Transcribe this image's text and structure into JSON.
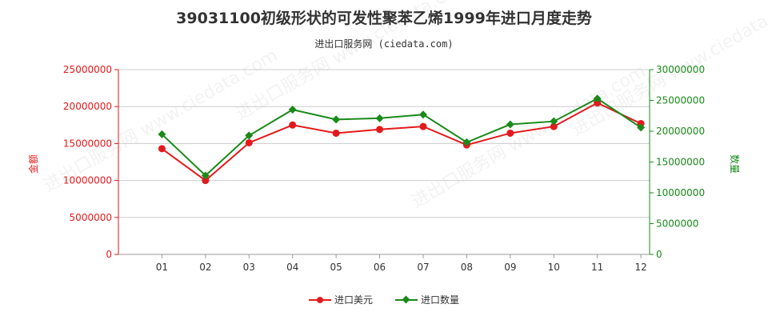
{
  "title": "39031100初级形状的可发性聚苯乙烯1999年进口月度走势",
  "subtitle": "进出口服务网 (ciedata.com)",
  "watermark": "进出口服务网 www.ciedata.com",
  "colors": {
    "value": "#e31a1c",
    "quantity": "#1a8a1a",
    "axis_left": "#e31a1c",
    "axis_right": "#1a8a1a",
    "grid": "#cccccc"
  },
  "chart_data": {
    "type": "line",
    "categories": [
      "01",
      "02",
      "03",
      "04",
      "05",
      "06",
      "07",
      "08",
      "09",
      "10",
      "11",
      "12"
    ],
    "y_left": {
      "label": "金额",
      "ylim": [
        0,
        25000000
      ],
      "ticks": [
        0,
        5000000,
        10000000,
        15000000,
        20000000,
        25000000
      ]
    },
    "y_right": {
      "label": "数量",
      "ylim": [
        0,
        30000000
      ],
      "ticks": [
        0,
        5000000,
        10000000,
        15000000,
        20000000,
        25000000,
        30000000
      ]
    },
    "series": [
      {
        "name": "进口美元",
        "axis": "left",
        "marker": "circle",
        "values": [
          14300000,
          10000000,
          15100000,
          17500000,
          16400000,
          16900000,
          17300000,
          14800000,
          16400000,
          17300000,
          20500000,
          17700000
        ]
      },
      {
        "name": "进口数量",
        "axis": "right",
        "marker": "diamond",
        "values": [
          19500000,
          12800000,
          19300000,
          23500000,
          21900000,
          22100000,
          22700000,
          18200000,
          21100000,
          21600000,
          25300000,
          20600000
        ]
      }
    ],
    "grid": true,
    "legend_position": "bottom-center"
  }
}
